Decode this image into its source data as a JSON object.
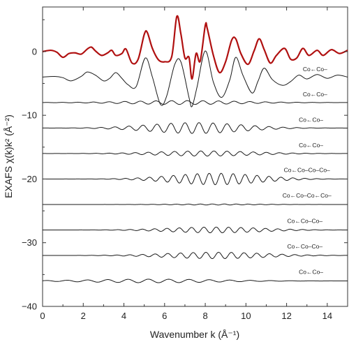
{
  "chart_data": {
    "type": "line",
    "xlabel": "Wavenumber k (Å⁻¹)",
    "ylabel": "EXAFS χ(k)k² (Å⁻²)",
    "xlim": [
      0,
      15
    ],
    "ylim": [
      -40,
      7
    ],
    "x_ticks": [
      0,
      2,
      4,
      6,
      8,
      10,
      12,
      14
    ],
    "y_ticks": [
      0,
      -10,
      -20,
      -30,
      -40
    ],
    "grid": false,
    "legend": "none",
    "series": [
      {
        "color": "#b01010",
        "line_width": 2.2,
        "offset": 0,
        "points": [
          [
            0,
            0
          ],
          [
            0.4,
            0.2
          ],
          [
            0.7,
            -0.1
          ],
          [
            1.0,
            -0.9
          ],
          [
            1.3,
            -0.3
          ],
          [
            1.6,
            -0.2
          ],
          [
            1.9,
            -0.4
          ],
          [
            2.2,
            0.4
          ],
          [
            2.4,
            0.7
          ],
          [
            2.6,
            0.1
          ],
          [
            2.9,
            -0.6
          ],
          [
            3.2,
            -0.2
          ],
          [
            3.4,
            0.2
          ],
          [
            3.6,
            -0.6
          ],
          [
            3.9,
            -0.3
          ],
          [
            4.1,
            0.4
          ],
          [
            4.4,
            -1.8
          ],
          [
            4.7,
            -1.2
          ],
          [
            5.0,
            2.7
          ],
          [
            5.15,
            3.0
          ],
          [
            5.4,
            0.5
          ],
          [
            5.7,
            -1.3
          ],
          [
            6.0,
            -1.6
          ],
          [
            6.35,
            -0.8
          ],
          [
            6.6,
            5.5
          ],
          [
            6.8,
            2.8
          ],
          [
            7.0,
            -1.0
          ],
          [
            7.2,
            -0.9
          ],
          [
            7.35,
            -4.3
          ],
          [
            7.55,
            -0.3
          ],
          [
            7.75,
            -1.5
          ],
          [
            8.0,
            4.1
          ],
          [
            8.1,
            3.6
          ],
          [
            8.4,
            -0.6
          ],
          [
            8.7,
            -3.3
          ],
          [
            9.0,
            -1.6
          ],
          [
            9.3,
            1.8
          ],
          [
            9.5,
            2.0
          ],
          [
            9.75,
            -0.3
          ],
          [
            10.1,
            -2.0
          ],
          [
            10.4,
            0.1
          ],
          [
            10.65,
            2.0
          ],
          [
            10.9,
            0.3
          ],
          [
            11.2,
            -1.8
          ],
          [
            11.5,
            -0.6
          ],
          [
            11.9,
            0.5
          ],
          [
            12.2,
            -1.2
          ],
          [
            12.5,
            -1.0
          ],
          [
            12.8,
            0.5
          ],
          [
            13.1,
            -0.6
          ],
          [
            13.5,
            0.2
          ],
          [
            13.8,
            -0.6
          ],
          [
            14.2,
            0.3
          ],
          [
            14.6,
            -0.3
          ],
          [
            15.0,
            0.2
          ]
        ]
      },
      {
        "offset": -4,
        "points": [
          [
            0,
            0
          ],
          [
            0.6,
            0.1
          ],
          [
            1.0,
            -0.1
          ],
          [
            1.4,
            -0.6
          ],
          [
            1.9,
            0.1
          ],
          [
            2.2,
            0.8
          ],
          [
            2.6,
            0.3
          ],
          [
            3.0,
            -0.6
          ],
          [
            3.3,
            -0.2
          ],
          [
            3.6,
            0.7
          ],
          [
            3.9,
            -0.2
          ],
          [
            4.2,
            -1.2
          ],
          [
            4.6,
            -1.5
          ],
          [
            5.05,
            3.0
          ],
          [
            5.4,
            0.0
          ],
          [
            5.8,
            -4.3
          ],
          [
            6.1,
            -3.0
          ],
          [
            6.5,
            2.0
          ],
          [
            6.8,
            2.4
          ],
          [
            7.2,
            -3.2
          ],
          [
            7.35,
            -4.6
          ],
          [
            7.6,
            -1.5
          ],
          [
            8.0,
            4.1
          ],
          [
            8.4,
            -0.8
          ],
          [
            8.8,
            -3.2
          ],
          [
            9.2,
            -0.5
          ],
          [
            9.5,
            3.1
          ],
          [
            9.85,
            0.3
          ],
          [
            10.3,
            -2.5
          ],
          [
            10.6,
            -0.6
          ],
          [
            10.9,
            1.4
          ],
          [
            11.3,
            -0.4
          ],
          [
            11.8,
            -1.3
          ],
          [
            12.2,
            -0.7
          ],
          [
            12.6,
            0.3
          ],
          [
            13.0,
            -0.3
          ],
          [
            13.5,
            0.4
          ],
          [
            14.0,
            -0.2
          ],
          [
            14.5,
            0.3
          ],
          [
            15.0,
            0.0
          ]
        ]
      },
      {
        "offset": -8,
        "amplitude": 0.3,
        "freq_per_A": 1.3,
        "envelope_center": 7.0,
        "envelope_width": 4.0,
        "phase": 0.0
      },
      {
        "offset": -12,
        "amplitude": 0.85,
        "freq_per_A": 1.45,
        "envelope_center": 7.5,
        "envelope_width": 3.2,
        "phase": 0.6
      },
      {
        "offset": -16,
        "amplitude": 0.4,
        "freq_per_A": 1.55,
        "envelope_center": 8.0,
        "envelope_width": 3.4,
        "phase": 1.2
      },
      {
        "offset": -20,
        "amplitude": 0.9,
        "freq_per_A": 1.7,
        "envelope_center": 8.5,
        "envelope_width": 3.0,
        "phase": 2.0
      },
      {
        "offset": -24,
        "amplitude": 0.08,
        "freq_per_A": 1.7,
        "envelope_center": 8.5,
        "envelope_width": 3.0,
        "phase": 0.4
      },
      {
        "offset": -28,
        "amplitude": 0.45,
        "freq_per_A": 1.65,
        "envelope_center": 8.5,
        "envelope_width": 3.2,
        "phase": 1.0
      },
      {
        "offset": -32,
        "amplitude": 0.5,
        "freq_per_A": 1.6,
        "envelope_center": 8.5,
        "envelope_width": 3.4,
        "phase": 2.5
      },
      {
        "offset": -36,
        "amplitude": 0.28,
        "freq_per_A": 1.0,
        "envelope_center": 5.5,
        "envelope_width": 4.5,
        "phase": 0.3
      }
    ],
    "annotations": [
      {
        "text": "Co←Co–",
        "x": 13.4,
        "y": -3.1
      },
      {
        "text": "Co←Co–",
        "x": 13.4,
        "y": -7.0
      },
      {
        "text": "Co←Co–",
        "x": 13.2,
        "y": -11.0
      },
      {
        "text": "Co←Co–",
        "x": 13.2,
        "y": -15.0
      },
      {
        "text": "Co←Co–Co–Co–",
        "x": 13.0,
        "y": -18.9
      },
      {
        "text": "Co←Co–Co←Co–",
        "x": 13.0,
        "y": -22.9
      },
      {
        "text": "Co←Co–Co–",
        "x": 12.9,
        "y": -26.9
      },
      {
        "text": "Co←Co–Co–",
        "x": 12.9,
        "y": -30.9
      },
      {
        "text": "Co←Co–",
        "x": 13.2,
        "y": -34.9
      }
    ]
  }
}
